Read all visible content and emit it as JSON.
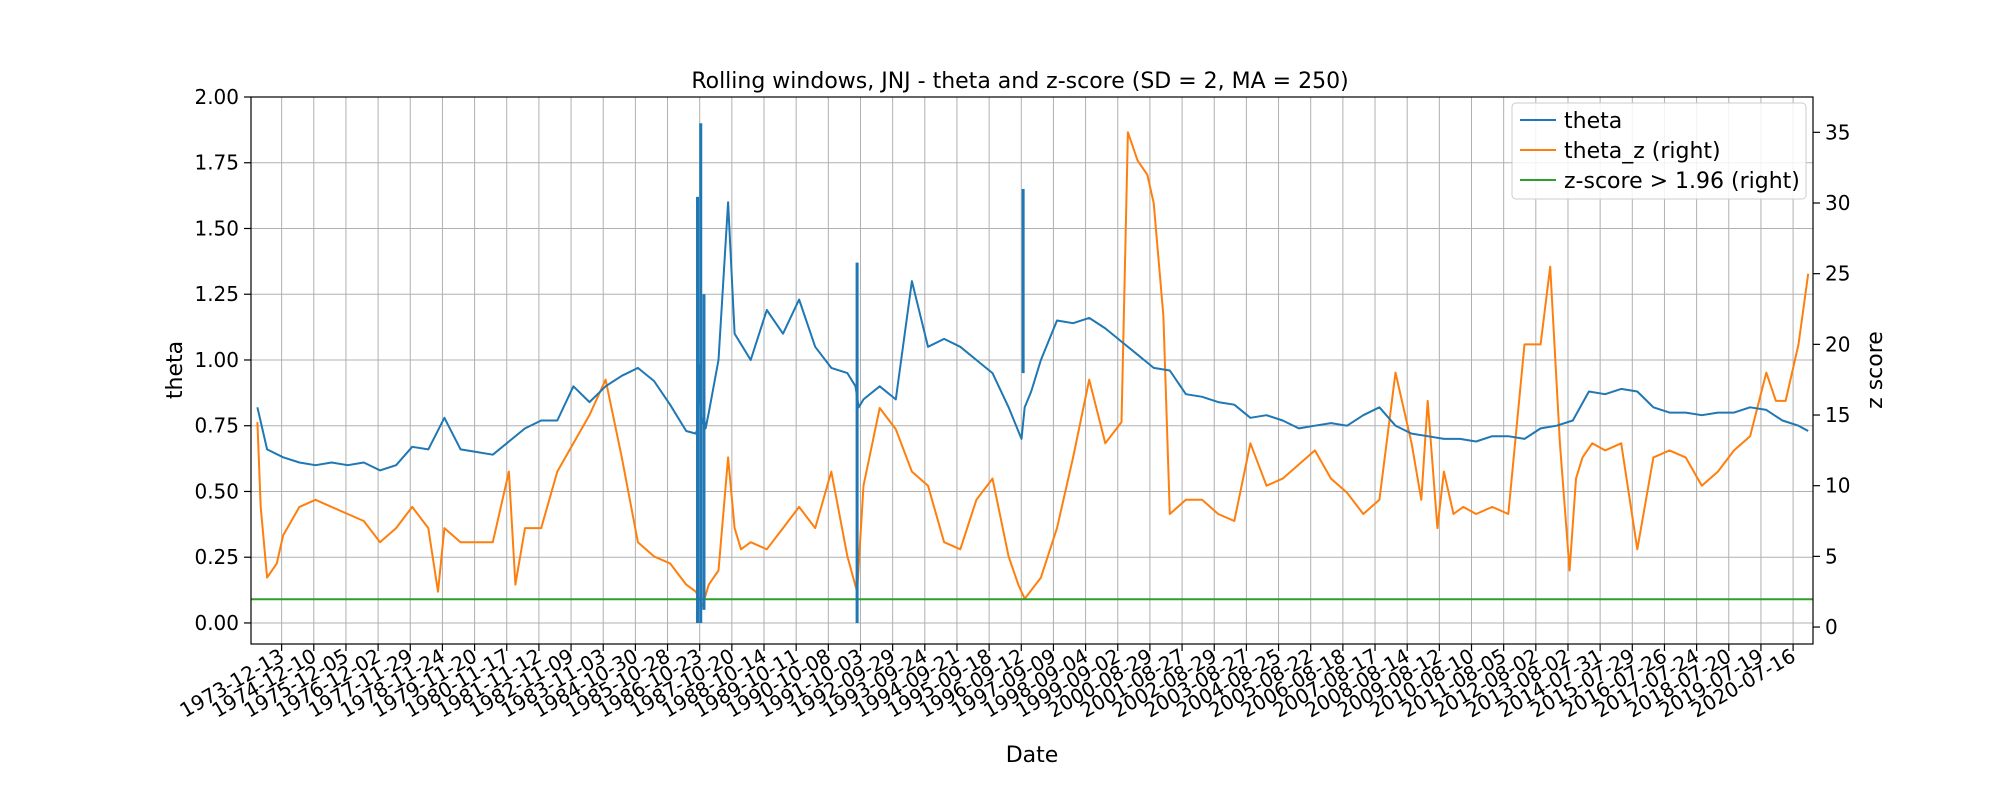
{
  "chart_data": {
    "type": "line",
    "title": "Rolling windows, JNJ - theta and z-score (SD = 2, MA = 250)",
    "xlabel": "Date",
    "ylabel_left": "theta",
    "ylabel_right": "z score",
    "ylim_left": [
      -0.08,
      2.0
    ],
    "ylim_right": [
      -1.2,
      37.5
    ],
    "yticks_left": [
      "0.00",
      "0.25",
      "0.50",
      "0.75",
      "1.00",
      "1.25",
      "1.50",
      "1.75",
      "2.00"
    ],
    "yticks_right": [
      "0",
      "5",
      "10",
      "15",
      "20",
      "25",
      "30",
      "35"
    ],
    "xticks": [
      "1973-12-13",
      "1974-12-10",
      "1975-12-05",
      "1976-12-02",
      "1977-11-29",
      "1978-11-24",
      "1979-11-20",
      "1980-11-17",
      "1981-11-12",
      "1982-11-09",
      "1983-11-03",
      "1984-10-30",
      "1985-10-28",
      "1986-10-23",
      "1987-10-20",
      "1988-10-14",
      "1989-10-11",
      "1990-10-08",
      "1991-10-03",
      "1992-09-29",
      "1993-09-24",
      "1994-09-21",
      "1995-09-18",
      "1996-09-12",
      "1997-09-09",
      "1998-09-04",
      "1999-09-02",
      "2000-08-29",
      "2001-08-27",
      "2002-08-29",
      "2003-08-27",
      "2004-08-25",
      "2005-08-22",
      "2006-08-18",
      "2007-08-17",
      "2008-08-14",
      "2009-08-12",
      "2010-08-10",
      "2011-08-05",
      "2012-08-02",
      "2013-08-02",
      "2014-07-31",
      "2015-07-29",
      "2016-07-26",
      "2017-07-24",
      "2018-07-20",
      "2019-07-19",
      "2020-07-16"
    ],
    "grid": true,
    "legend_position": "top-right",
    "series": [
      {
        "name": "theta",
        "axis": "left",
        "color": "#1f77b4",
        "x": [
          1973.2,
          1973.5,
          1974.0,
          1974.5,
          1975.0,
          1975.5,
          1976.0,
          1976.5,
          1977.0,
          1977.5,
          1978.0,
          1978.5,
          1979.0,
          1979.5,
          1980.0,
          1980.5,
          1981.0,
          1981.5,
          1982.0,
          1982.5,
          1983.0,
          1983.5,
          1984.0,
          1984.5,
          1985.0,
          1985.5,
          1986.0,
          1986.5,
          1986.8,
          1986.85,
          1986.9,
          1986.95,
          1987.0,
          1987.05,
          1987.1,
          1987.2,
          1987.5,
          1987.8,
          1988.0,
          1988.5,
          1989.0,
          1989.5,
          1990.0,
          1990.5,
          1991.0,
          1991.5,
          1991.75,
          1991.8,
          1991.85,
          1992.0,
          1992.5,
          1993.0,
          1993.5,
          1994.0,
          1994.5,
          1995.0,
          1995.5,
          1996.0,
          1996.5,
          1996.9,
          1996.95,
          1997.0,
          1997.2,
          1997.5,
          1998.0,
          1998.5,
          1999.0,
          1999.5,
          2000.0,
          2000.5,
          2001.0,
          2001.5,
          2002.0,
          2002.5,
          2003.0,
          2003.5,
          2004.0,
          2004.5,
          2005.0,
          2005.5,
          2006.0,
          2006.5,
          2007.0,
          2007.5,
          2008.0,
          2008.5,
          2009.0,
          2009.5,
          2010.0,
          2010.5,
          2011.0,
          2011.5,
          2012.0,
          2012.5,
          2013.0,
          2013.5,
          2014.0,
          2014.5,
          2015.0,
          2015.5,
          2016.0,
          2016.5,
          2017.0,
          2017.5,
          2018.0,
          2018.5,
          2019.0,
          2019.5,
          2020.0,
          2020.5,
          2021.0,
          2021.3
        ],
        "values": [
          0.82,
          0.66,
          0.63,
          0.61,
          0.6,
          0.61,
          0.6,
          0.61,
          0.58,
          0.6,
          0.67,
          0.66,
          0.78,
          0.66,
          0.65,
          0.64,
          0.69,
          0.74,
          0.77,
          0.77,
          0.9,
          0.84,
          0.9,
          0.94,
          0.97,
          0.92,
          0.83,
          0.73,
          0.72,
          0.74,
          0.98,
          0.79,
          0.76,
          0.78,
          0.74,
          0.8,
          1.0,
          1.6,
          1.1,
          1.0,
          1.19,
          1.1,
          1.23,
          1.05,
          0.97,
          0.95,
          0.9,
          0.86,
          0.82,
          0.85,
          0.9,
          0.85,
          1.3,
          1.05,
          1.08,
          1.05,
          1.0,
          0.95,
          0.82,
          0.7,
          0.76,
          0.82,
          0.88,
          1.0,
          1.15,
          1.14,
          1.16,
          1.12,
          1.07,
          1.02,
          0.97,
          0.96,
          0.87,
          0.86,
          0.84,
          0.83,
          0.78,
          0.79,
          0.77,
          0.74,
          0.75,
          0.76,
          0.75,
          0.79,
          0.82,
          0.75,
          0.72,
          0.71,
          0.7,
          0.7,
          0.69,
          0.71,
          0.71,
          0.7,
          0.74,
          0.75,
          0.77,
          0.88,
          0.87,
          0.89,
          0.88,
          0.82,
          0.8,
          0.8,
          0.79,
          0.8,
          0.8,
          0.82,
          0.81,
          0.77,
          0.75,
          0.73
        ],
        "spikes": [
          {
            "x": 1986.85,
            "low": 0.0,
            "high": 1.62
          },
          {
            "x": 1986.95,
            "low": 0.0,
            "high": 1.9
          },
          {
            "x": 1987.05,
            "low": 0.05,
            "high": 1.25
          },
          {
            "x": 1991.8,
            "low": 0.0,
            "high": 1.37
          },
          {
            "x": 1996.95,
            "low": 0.95,
            "high": 1.65
          }
        ]
      },
      {
        "name": "theta_z (right)",
        "axis": "right",
        "color": "#ff7f0e",
        "x": [
          1973.2,
          1973.3,
          1973.5,
          1973.8,
          1974.0,
          1974.5,
          1975.0,
          1975.5,
          1976.0,
          1976.5,
          1977.0,
          1977.5,
          1978.0,
          1978.5,
          1978.8,
          1979.0,
          1979.5,
          1980.0,
          1980.5,
          1981.0,
          1981.2,
          1981.5,
          1982.0,
          1982.5,
          1983.0,
          1983.5,
          1984.0,
          1984.5,
          1985.0,
          1985.5,
          1986.0,
          1986.5,
          1986.8,
          1987.0,
          1987.2,
          1987.5,
          1987.8,
          1988.0,
          1988.2,
          1988.5,
          1989.0,
          1989.5,
          1990.0,
          1990.5,
          1991.0,
          1991.5,
          1991.8,
          1992.0,
          1992.5,
          1993.0,
          1993.5,
          1994.0,
          1994.5,
          1995.0,
          1995.5,
          1996.0,
          1996.5,
          1996.8,
          1997.0,
          1997.5,
          1998.0,
          1998.5,
          1999.0,
          1999.5,
          2000.0,
          2000.2,
          2000.5,
          2000.8,
          2001.0,
          2001.3,
          2001.5,
          2002.0,
          2002.5,
          2003.0,
          2003.5,
          2004.0,
          2004.5,
          2005.0,
          2005.5,
          2006.0,
          2006.5,
          2007.0,
          2007.5,
          2008.0,
          2008.5,
          2009.0,
          2009.3,
          2009.5,
          2009.8,
          2010.0,
          2010.3,
          2010.6,
          2011.0,
          2011.5,
          2012.0,
          2012.5,
          2013.0,
          2013.3,
          2013.6,
          2013.9,
          2014.1,
          2014.3,
          2014.6,
          2015.0,
          2015.5,
          2016.0,
          2016.5,
          2017.0,
          2017.5,
          2018.0,
          2018.5,
          2019.0,
          2019.5,
          2020.0,
          2020.3,
          2020.6,
          2021.0,
          2021.3
        ],
        "values": [
          14.5,
          8.5,
          3.5,
          4.5,
          6.5,
          8.5,
          9.0,
          8.5,
          8.0,
          7.5,
          6.0,
          7.0,
          8.5,
          7.0,
          2.5,
          7.0,
          6.0,
          6.0,
          6.0,
          11.0,
          3.0,
          7.0,
          7.0,
          11.0,
          13.0,
          15.0,
          17.5,
          12.0,
          6.0,
          5.0,
          4.5,
          3.0,
          2.5,
          1.5,
          3.0,
          4.0,
          12.0,
          7.0,
          5.5,
          6.0,
          5.5,
          7.0,
          8.5,
          7.0,
          11.0,
          5.0,
          2.5,
          10.0,
          15.5,
          14.0,
          11.0,
          10.0,
          6.0,
          5.5,
          9.0,
          10.5,
          5.0,
          3.0,
          2.0,
          3.5,
          7.0,
          12.0,
          17.5,
          13.0,
          14.5,
          35.0,
          33.0,
          32.0,
          30.0,
          22.0,
          8.0,
          9.0,
          9.0,
          8.0,
          7.5,
          13.0,
          10.0,
          10.5,
          11.5,
          12.5,
          10.5,
          9.5,
          8.0,
          9.0,
          18.0,
          13.0,
          9.0,
          16.0,
          7.0,
          11.0,
          8.0,
          8.5,
          8.0,
          8.5,
          8.0,
          20.0,
          20.0,
          25.5,
          13.0,
          4.0,
          10.5,
          12.0,
          13.0,
          12.5,
          13.0,
          5.5,
          12.0,
          12.5,
          12.0,
          10.0,
          11.0,
          12.5,
          13.5,
          18.0,
          16.0,
          16.0,
          20.0,
          25.0
        ]
      },
      {
        "name": "z-score > 1.96 (right)",
        "axis": "right",
        "color": "#2ca02c",
        "x": [
          1973.0,
          2021.45
        ],
        "values": [
          1.96,
          1.96
        ]
      }
    ]
  }
}
